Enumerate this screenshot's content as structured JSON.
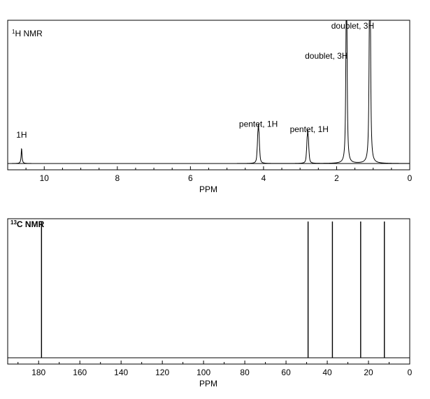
{
  "chart_data": [
    {
      "type": "line",
      "title": "1H NMR",
      "title_sup": "1",
      "title_main": "H NMR",
      "xlabel": "PPM",
      "xlim": [
        11,
        0
      ],
      "ylim": [
        0,
        1
      ],
      "x_ticks": [
        10,
        8,
        6,
        4,
        2,
        0
      ],
      "minor_tick_step": 0.5,
      "x_axis_reversed": true,
      "grid": false,
      "peaks": [
        {
          "x": 10.62,
          "multiplicity": 1,
          "spacing": 0,
          "height": 0.11,
          "width": 1.5
        },
        {
          "x": 4.14,
          "multiplicity": 5,
          "spacing": 0.018,
          "height": 0.2,
          "width": 1.3
        },
        {
          "x": 2.79,
          "multiplicity": 5,
          "spacing": 0.018,
          "height": 0.17,
          "width": 1.3
        },
        {
          "x": 1.73,
          "multiplicity": 2,
          "spacing": 0.018,
          "height": 0.78,
          "width": 1.6
        },
        {
          "x": 1.09,
          "multiplicity": 2,
          "spacing": 0.018,
          "height": 1.0,
          "width": 1.6
        }
      ],
      "annotations": [
        {
          "text": "1H",
          "x": 10.62,
          "y": 0.19
        },
        {
          "text": "pentet, 1H",
          "x": 4.14,
          "y": 0.27
        },
        {
          "text": "pentet, 1H",
          "x": 2.75,
          "y": 0.23
        },
        {
          "text": "doublet, 3H",
          "x": 2.28,
          "y": 0.77
        },
        {
          "text": "doublet, 3H",
          "x": 1.56,
          "y": 0.99
        }
      ]
    },
    {
      "type": "line",
      "title": "13C NMR",
      "title_sup": "13",
      "title_main": "C NMR",
      "xlabel": "PPM",
      "xlim": [
        195,
        0
      ],
      "ylim": [
        0,
        1
      ],
      "x_ticks": [
        180,
        160,
        140,
        120,
        100,
        80,
        60,
        40,
        20,
        0
      ],
      "minor_tick_step": 10,
      "x_axis_reversed": true,
      "grid": false,
      "peaks": [
        {
          "x": 178.6,
          "height": 1.0
        },
        {
          "x": 49.3,
          "height": 1.0
        },
        {
          "x": 37.5,
          "height": 1.0
        },
        {
          "x": 23.8,
          "height": 1.0
        },
        {
          "x": 12.3,
          "height": 1.0
        }
      ]
    }
  ]
}
